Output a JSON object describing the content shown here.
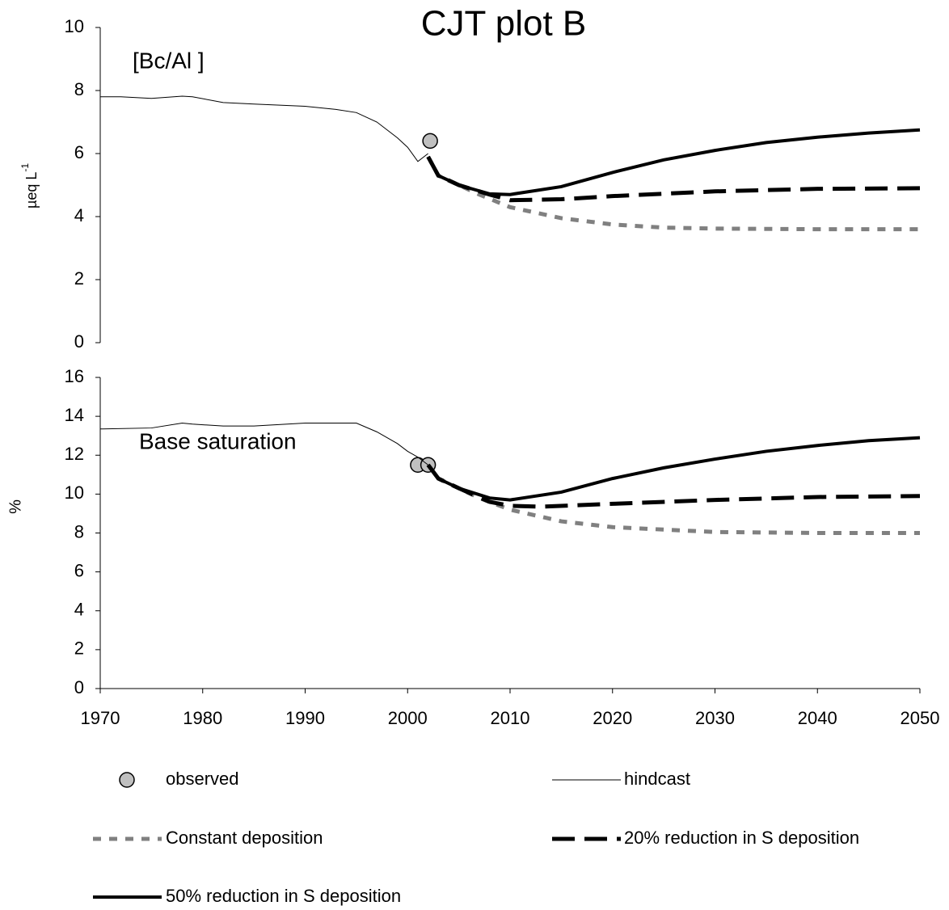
{
  "chart_data": [
    {
      "type": "line",
      "title": "CJT plot B",
      "annotation": "[Bc/Al ]",
      "ylabel": "µeq L",
      "ylabel_sup": "-1",
      "xlim": [
        1970,
        2050
      ],
      "ylim": [
        0,
        10
      ],
      "yticks": [
        0,
        2,
        4,
        6,
        8,
        10
      ],
      "series": [
        {
          "name": "observed",
          "type": "scatter",
          "color": "#c0c0c0",
          "x": [
            2002.2
          ],
          "values": [
            6.4
          ]
        },
        {
          "name": "hindcast",
          "color": "#000000",
          "x": [
            1970,
            1972,
            1975,
            1978,
            1979,
            1982,
            1985,
            1990,
            1993,
            1995,
            1997,
            1999,
            2000,
            2001,
            2002
          ],
          "values": [
            7.8,
            7.8,
            7.75,
            7.82,
            7.8,
            7.62,
            7.57,
            7.5,
            7.4,
            7.3,
            7.0,
            6.5,
            6.2,
            5.75,
            6.0
          ]
        },
        {
          "name": "Constant deposition",
          "color": "#808080",
          "x": [
            2002,
            2003,
            2005,
            2007,
            2010,
            2015,
            2020,
            2025,
            2030,
            2040,
            2050
          ],
          "values": [
            5.9,
            5.3,
            5.0,
            4.7,
            4.3,
            3.95,
            3.75,
            3.65,
            3.62,
            3.6,
            3.6
          ]
        },
        {
          "name": "20% reduction in S deposition",
          "color": "#000000",
          "x": [
            2002,
            2003,
            2005,
            2008,
            2010,
            2015,
            2020,
            2030,
            2040,
            2050
          ],
          "values": [
            5.9,
            5.3,
            5.0,
            4.7,
            4.52,
            4.55,
            4.65,
            4.8,
            4.88,
            4.9
          ]
        },
        {
          "name": "50% reduction in S deposition",
          "color": "#000000",
          "x": [
            2002,
            2003,
            2005,
            2008,
            2010,
            2015,
            2020,
            2025,
            2030,
            2035,
            2040,
            2045,
            2050
          ],
          "values": [
            5.9,
            5.3,
            5.0,
            4.72,
            4.7,
            4.95,
            5.4,
            5.8,
            6.1,
            6.35,
            6.52,
            6.65,
            6.75
          ]
        }
      ]
    },
    {
      "type": "line",
      "annotation": "Base saturation",
      "ylabel": "%",
      "xlim": [
        1970,
        2050
      ],
      "xticks": [
        1970,
        1980,
        1990,
        2000,
        2010,
        2020,
        2030,
        2040,
        2050
      ],
      "ylim": [
        0,
        16
      ],
      "yticks": [
        0,
        2,
        4,
        6,
        8,
        10,
        12,
        14,
        16
      ],
      "series": [
        {
          "type": "scatter",
          "color": "#c0c0c0",
          "x": [
            2001,
            2002
          ],
          "values": [
            11.5,
            11.5
          ]
        },
        {
          "color": "#000000",
          "x": [
            1970,
            1975,
            1978,
            1979,
            1982,
            1985,
            1990,
            1995,
            1997,
            1999,
            2000,
            2001,
            2002
          ],
          "values": [
            13.35,
            13.4,
            13.65,
            13.6,
            13.5,
            13.5,
            13.65,
            13.65,
            13.2,
            12.6,
            12.2,
            11.9,
            11.5
          ]
        },
        {
          "color": "#808080",
          "x": [
            2002,
            2003,
            2005,
            2007,
            2010,
            2015,
            2020,
            2030,
            2040,
            2050
          ],
          "values": [
            11.5,
            10.8,
            10.3,
            9.8,
            9.2,
            8.6,
            8.3,
            8.05,
            8.0,
            8.0
          ]
        },
        {
          "color": "#000000",
          "x": [
            2002,
            2003,
            2005,
            2008,
            2010,
            2013,
            2020,
            2030,
            2040,
            2050
          ],
          "values": [
            11.5,
            10.8,
            10.3,
            9.6,
            9.4,
            9.35,
            9.5,
            9.7,
            9.85,
            9.9
          ]
        },
        {
          "color": "#000000",
          "x": [
            2002,
            2003,
            2005,
            2008,
            2010,
            2015,
            2020,
            2025,
            2030,
            2035,
            2040,
            2045,
            2050
          ],
          "values": [
            11.5,
            10.8,
            10.3,
            9.8,
            9.7,
            10.1,
            10.8,
            11.35,
            11.8,
            12.2,
            12.5,
            12.75,
            12.9
          ]
        }
      ]
    }
  ]
}
